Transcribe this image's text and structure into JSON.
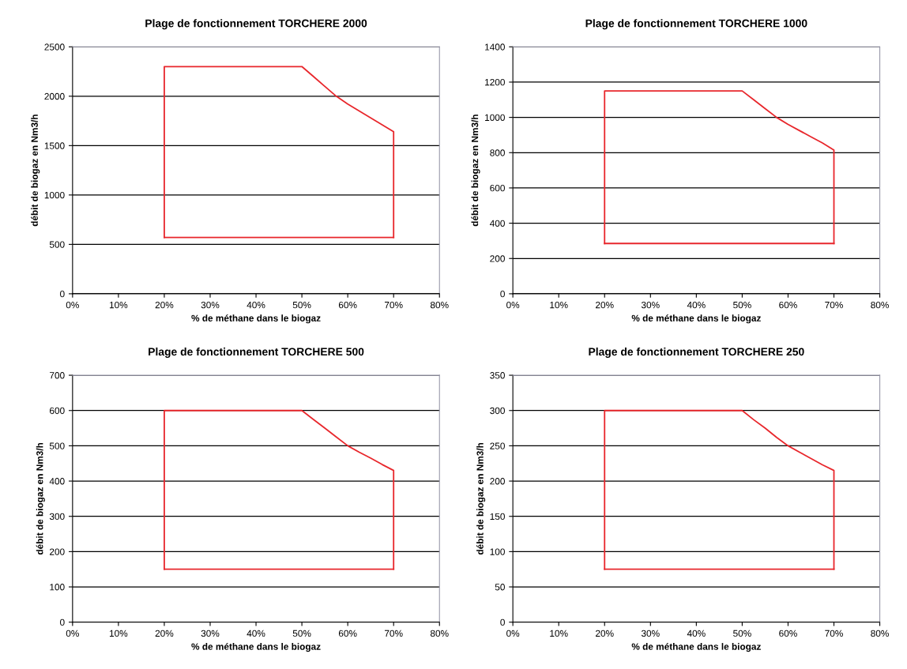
{
  "chart_data": [
    {
      "type": "line",
      "title": "Plage de fonctionnement TORCHERE 2000",
      "xlabel": "% de méthane dans le biogaz",
      "ylabel": "débit de biogaz en Nm3/h",
      "xlim": [
        0,
        80
      ],
      "xticks": [
        {
          "value": 0,
          "label": "0%"
        },
        {
          "value": 10,
          "label": "10%"
        },
        {
          "value": 20,
          "label": "20%"
        },
        {
          "value": 30,
          "label": "30%"
        },
        {
          "value": 40,
          "label": "40%"
        },
        {
          "value": 50,
          "label": "50%"
        },
        {
          "value": 60,
          "label": "60%"
        },
        {
          "value": 70,
          "label": "70%"
        },
        {
          "value": 80,
          "label": "80%"
        }
      ],
      "ylim": [
        0,
        2500
      ],
      "yticks": [
        0,
        500,
        1000,
        1500,
        2000,
        2500
      ],
      "grid": "y",
      "marker": "none",
      "series": [
        {
          "color": "#e8272c",
          "x": [
            20,
            20,
            50,
            52.5,
            55,
            57.5,
            60,
            62.5,
            65,
            67.5,
            70,
            70
          ],
          "values": [
            570,
            2300,
            2300,
            2200,
            2100,
            2000,
            1920,
            1850,
            1780,
            1710,
            1640,
            570
          ]
        },
        {
          "color": "#e8272c",
          "x": [
            20,
            70
          ],
          "values": [
            570,
            570
          ]
        }
      ]
    },
    {
      "type": "line",
      "title": "Plage de fonctionnement TORCHERE 1000",
      "xlabel": "% de méthane dans le biogaz",
      "ylabel": "débit de biogaz en Nm3/h",
      "xlim": [
        0,
        80
      ],
      "xticks": [
        {
          "value": 0,
          "label": "0%"
        },
        {
          "value": 10,
          "label": "10%"
        },
        {
          "value": 20,
          "label": "20%"
        },
        {
          "value": 30,
          "label": "30%"
        },
        {
          "value": 40,
          "label": "40%"
        },
        {
          "value": 50,
          "label": "50%"
        },
        {
          "value": 60,
          "label": "60%"
        },
        {
          "value": 70,
          "label": "70%"
        },
        {
          "value": 80,
          "label": "80%"
        }
      ],
      "ylim": [
        0,
        1400
      ],
      "yticks": [
        0,
        200,
        400,
        600,
        800,
        1000,
        1200,
        1400
      ],
      "grid": "y",
      "marker": "none",
      "series": [
        {
          "color": "#e8272c",
          "x": [
            20,
            20,
            50,
            52.5,
            55,
            57.5,
            60,
            62.5,
            65,
            67.5,
            70,
            70
          ],
          "values": [
            285,
            1150,
            1150,
            1100,
            1050,
            1000,
            960,
            925,
            890,
            855,
            815,
            285
          ]
        },
        {
          "color": "#e8272c",
          "x": [
            20,
            70
          ],
          "values": [
            285,
            285
          ]
        }
      ]
    },
    {
      "type": "line",
      "title": "Plage de fonctionnement TORCHERE 500",
      "xlabel": "% de méthane dans le biogaz",
      "ylabel": "débit de biogaz en Nm3/h",
      "xlim": [
        0,
        80
      ],
      "xticks": [
        {
          "value": 0,
          "label": "0%"
        },
        {
          "value": 10,
          "label": "10%"
        },
        {
          "value": 20,
          "label": "20%"
        },
        {
          "value": 30,
          "label": "30%"
        },
        {
          "value": 40,
          "label": "40%"
        },
        {
          "value": 50,
          "label": "50%"
        },
        {
          "value": 60,
          "label": "60%"
        },
        {
          "value": 70,
          "label": "70%"
        },
        {
          "value": 80,
          "label": "80%"
        }
      ],
      "ylim": [
        0,
        700
      ],
      "yticks": [
        0,
        100,
        200,
        300,
        400,
        500,
        600,
        700
      ],
      "grid": "y",
      "marker": "none",
      "series": [
        {
          "color": "#e8272c",
          "x": [
            20,
            20,
            50,
            52.5,
            55,
            57.5,
            60,
            62.5,
            65,
            67.5,
            70,
            70
          ],
          "values": [
            150,
            600,
            600,
            575,
            550,
            525,
            500,
            482,
            465,
            447,
            430,
            150
          ]
        },
        {
          "color": "#e8272c",
          "x": [
            20,
            70
          ],
          "values": [
            150,
            150
          ]
        }
      ]
    },
    {
      "type": "line",
      "title": "Plage de fonctionnement TORCHERE 250",
      "xlabel": "% de méthane dans le biogaz",
      "ylabel": "débit de biogaz en Nm3/h",
      "xlim": [
        0,
        80
      ],
      "xticks": [
        {
          "value": 0,
          "label": "0%"
        },
        {
          "value": 10,
          "label": "10%"
        },
        {
          "value": 20,
          "label": "20%"
        },
        {
          "value": 30,
          "label": "30%"
        },
        {
          "value": 40,
          "label": "40%"
        },
        {
          "value": 50,
          "label": "50%"
        },
        {
          "value": 60,
          "label": "60%"
        },
        {
          "value": 70,
          "label": "70%"
        },
        {
          "value": 80,
          "label": "80%"
        }
      ],
      "ylim": [
        0,
        350
      ],
      "yticks": [
        0,
        50,
        100,
        150,
        200,
        250,
        300,
        350
      ],
      "grid": "y",
      "marker": "none",
      "series": [
        {
          "color": "#e8272c",
          "x": [
            20,
            20,
            50,
            52.5,
            55,
            57.5,
            60,
            62.5,
            65,
            67.5,
            70,
            70
          ],
          "values": [
            75,
            300,
            300,
            287,
            275,
            262,
            250,
            241,
            232,
            223,
            215,
            75
          ]
        },
        {
          "color": "#e8272c",
          "x": [
            20,
            70
          ],
          "values": [
            75,
            75
          ]
        }
      ]
    }
  ]
}
